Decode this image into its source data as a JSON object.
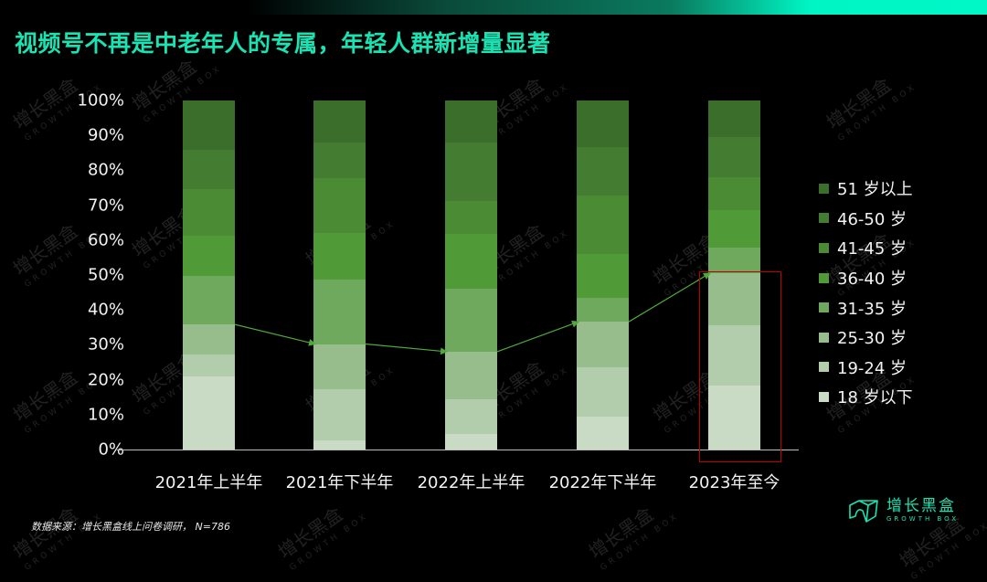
{
  "header": {
    "title": "视频号不再是中老年人的专属，年轻人群新增量显著"
  },
  "watermark": {
    "cn": "增长黑盒",
    "en": "GROWTH BOX"
  },
  "chart_data": {
    "type": "bar",
    "stacked": true,
    "normalized_percent": true,
    "title": "视频号不再是中老年人的专属，年轻人群新增量显著",
    "categories": [
      "2021年上半年",
      "2021年下半年",
      "2022年上半年",
      "2022年下半年",
      "2023年至今"
    ],
    "yticks": [
      "0%",
      "10%",
      "20%",
      "30%",
      "40%",
      "50%",
      "60%",
      "70%",
      "80%",
      "90%",
      "100%"
    ],
    "ylim": [
      0,
      100
    ],
    "xlabel": "",
    "ylabel": "",
    "grid": false,
    "legend_position": "right",
    "series": [
      {
        "name": "18 岁以下",
        "color": "#c9dbc5",
        "values": [
          21.0,
          2.5,
          4.5,
          9.4,
          18.3
        ]
      },
      {
        "name": "19-24 岁",
        "color": "#b2cdac",
        "values": [
          6.1,
          14.8,
          9.9,
          14.1,
          17.3
        ]
      },
      {
        "name": "25-30 岁",
        "color": "#97bd8d",
        "values": [
          8.7,
          12.9,
          13.6,
          13.1,
          14.9
        ]
      },
      {
        "name": "31-35 岁",
        "color": "#6ea95e",
        "values": [
          14.0,
          18.5,
          18.1,
          6.8,
          7.3
        ]
      },
      {
        "name": "36-40 岁",
        "color": "#519a38",
        "values": [
          11.3,
          13.3,
          15.6,
          12.6,
          10.7
        ]
      },
      {
        "name": "41-45 岁",
        "color": "#4a8b34",
        "values": [
          13.5,
          15.7,
          9.4,
          16.8,
          9.4
        ]
      },
      {
        "name": "46-50 岁",
        "color": "#447c31",
        "values": [
          11.1,
          10.2,
          16.8,
          13.8,
          11.5
        ]
      },
      {
        "name": "51 岁以上",
        "color": "#3a6e2a",
        "values": [
          14.2,
          12.0,
          12.0,
          13.4,
          10.5
        ]
      }
    ],
    "annotations": {
      "trend_arrows": "Green arrows connect the top of the 25-30 岁 segment (cumulative under-30 share) across bars: ~35.8% → ~30.2% → ~28.0% → ~36.6% → ~50.5%",
      "highlight_box": "Red rectangle around the under-30 segments of 2023年至今"
    }
  },
  "legend": {
    "items": [
      {
        "label": "51 岁以上",
        "color": "#3a6e2a"
      },
      {
        "label": "46-50 岁",
        "color": "#447c31"
      },
      {
        "label": "41-45 岁",
        "color": "#4a8b34"
      },
      {
        "label": "36-40 岁",
        "color": "#519a38"
      },
      {
        "label": "31-35 岁",
        "color": "#6ea95e"
      },
      {
        "label": "25-30 岁",
        "color": "#97bd8d"
      },
      {
        "label": "19-24 岁",
        "color": "#b2cdac"
      },
      {
        "label": "18 岁以下",
        "color": "#c9dbc5"
      }
    ]
  },
  "footer": {
    "source": "数据来源：增长黑盒线上问卷调研，   N=786"
  },
  "logo": {
    "cn": "增长黑盒",
    "en": "GROWTH BOX"
  },
  "colors": {
    "accent": "#19e3b2",
    "arrow": "#4ea83a",
    "highlight": "#c00000",
    "background": "#000000"
  }
}
